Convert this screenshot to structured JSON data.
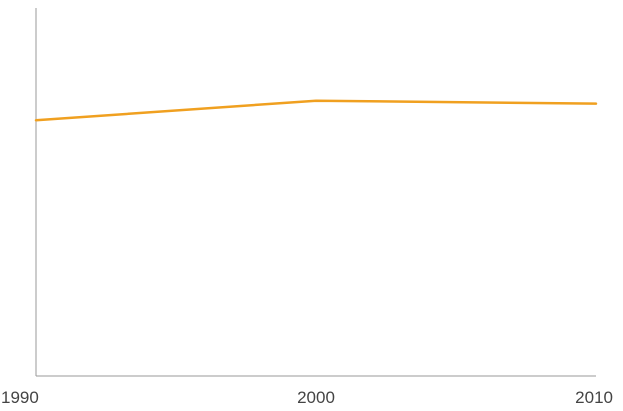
{
  "chart_data": {
    "type": "line",
    "title": "",
    "xlabel": "",
    "ylabel": "",
    "x": [
      1990,
      2000,
      2010
    ],
    "x_tick_labels": [
      "1990",
      "2000",
      "2010"
    ],
    "ylim": [
      0,
      100
    ],
    "grid": false,
    "legend": "none",
    "series": [
      {
        "values": [
          69.5,
          74.8,
          74.0
        ],
        "color": "#F0A020"
      }
    ]
  }
}
